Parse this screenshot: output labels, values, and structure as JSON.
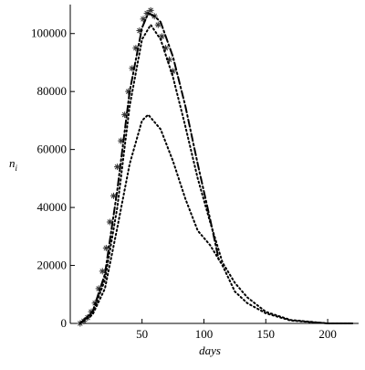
{
  "chart_data": {
    "type": "line",
    "x_label": "days",
    "y_label": {
      "text": "n",
      "subscript": "i"
    },
    "xlim": [
      -8,
      225
    ],
    "ylim": [
      0,
      110000
    ],
    "xticks": [
      50,
      100,
      150,
      200
    ],
    "yticks": [
      0,
      20000,
      40000,
      60000,
      80000,
      100000
    ],
    "series": [
      {
        "style": "stars",
        "color": "#333333",
        "x": [
          0,
          3,
          6,
          9,
          12,
          15,
          18,
          21,
          24,
          27,
          30,
          33,
          36,
          39,
          42,
          45,
          48,
          51,
          54,
          57,
          60,
          63,
          66,
          69,
          72,
          75
        ],
        "values": [
          0,
          800,
          2000,
          4000,
          7000,
          12000,
          18000,
          26000,
          35000,
          44000,
          54000,
          63000,
          72000,
          80000,
          88000,
          95000,
          101000,
          105000,
          107000,
          108000,
          106000,
          103000,
          99000,
          95000,
          91000,
          87000
        ]
      },
      {
        "style": "dashdot",
        "color": "#000000",
        "x": [
          0,
          10,
          20,
          30,
          40,
          50,
          55,
          60,
          65,
          75,
          85,
          95,
          105,
          112
        ],
        "values": [
          0,
          4000,
          17000,
          46000,
          80000,
          102000,
          107000,
          106000,
          104000,
          92000,
          75000,
          55000,
          36000,
          22000
        ]
      },
      {
        "style": "dotted",
        "color": "#000000",
        "x": [
          0,
          10,
          20,
          30,
          40,
          50,
          57,
          65,
          75,
          85,
          95,
          105,
          115,
          125,
          135,
          150,
          170,
          200,
          220
        ],
        "values": [
          0,
          3500,
          15000,
          40000,
          75000,
          98000,
          103000,
          98000,
          85000,
          68000,
          50000,
          35000,
          21000,
          14000,
          9000,
          4000,
          1200,
          0,
          0
        ]
      },
      {
        "style": "dotted",
        "color": "#000000",
        "x": [
          0,
          10,
          20,
          30,
          40,
          50,
          55,
          65,
          75,
          85,
          95,
          105,
          115,
          125,
          135,
          150,
          170,
          200,
          220
        ],
        "values": [
          0,
          3000,
          12000,
          33000,
          55000,
          70000,
          72000,
          67000,
          56000,
          43000,
          32000,
          27000,
          20000,
          11000,
          7000,
          3500,
          1000,
          0,
          0
        ]
      }
    ]
  }
}
